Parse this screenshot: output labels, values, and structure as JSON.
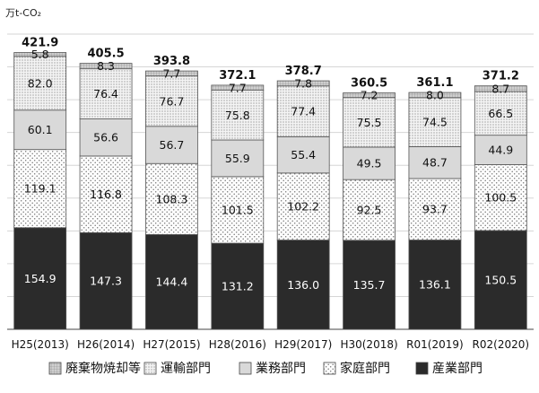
{
  "chart_data": {
    "type": "stacked-bar",
    "unit_label": "万t-CO₂",
    "categories": [
      "H25(2013)",
      "H26(2014)",
      "H27(2015)",
      "H28(2016)",
      "H29(2017)",
      "H30(2018)",
      "R01(2019)",
      "R02(2020)"
    ],
    "series": [
      {
        "name": "産業部門",
        "color": "#2b2b2b",
        "pattern": "solid",
        "values": [
          154.9,
          147.3,
          144.4,
          131.2,
          136.0,
          135.7,
          136.1,
          150.5
        ],
        "labels": [
          "154.9",
          "147.3",
          "144.4",
          "131.2",
          "136.0",
          "135.7",
          "136.1",
          "150.5"
        ]
      },
      {
        "name": "家庭部門",
        "color": "#ffffff",
        "pattern": "dots",
        "values": [
          119.1,
          116.8,
          108.3,
          101.5,
          102.2,
          92.5,
          93.7,
          100.5
        ],
        "labels": [
          "119.1",
          "116.8",
          "108.3",
          "101.5",
          "102.2",
          "92.5",
          "93.7",
          "100.5"
        ]
      },
      {
        "name": "業務部門",
        "color": "#d9d9d9",
        "pattern": "solid",
        "values": [
          60.1,
          56.6,
          56.7,
          55.9,
          55.4,
          49.5,
          48.7,
          44.9
        ],
        "labels": [
          "60.1",
          "56.6",
          "56.7",
          "55.9",
          "55.4",
          "49.5",
          "48.7",
          "44.9"
        ]
      },
      {
        "name": "運輸部門",
        "color": "#ffffff",
        "pattern": "fine-dots",
        "values": [
          82.0,
          76.4,
          76.7,
          75.8,
          77.4,
          75.5,
          74.5,
          66.5
        ],
        "labels": [
          "82.0",
          "76.4",
          "76.7",
          "75.8",
          "77.4",
          "75.5",
          "74.5",
          "66.5"
        ]
      },
      {
        "name": "廃棄物焼却等",
        "color": "#bdbdbd",
        "pattern": "grid",
        "values": [
          5.8,
          8.3,
          7.7,
          7.7,
          7.8,
          7.2,
          8.0,
          8.7
        ],
        "labels": [
          "5.8",
          "8.3",
          "7.7",
          "7.7",
          "7.8",
          "7.2",
          "8.0",
          "8.7"
        ]
      }
    ],
    "totals": [
      "421.9",
      "405.5",
      "393.8",
      "372.1",
      "378.7",
      "360.5",
      "361.1",
      "371.2"
    ],
    "legend": [
      "廃棄物焼却等",
      "運輸部門",
      "業務部門",
      "家庭部門",
      "産業部門"
    ],
    "ylim": [
      0,
      450
    ],
    "grid": true,
    "legend_position": "bottom"
  }
}
